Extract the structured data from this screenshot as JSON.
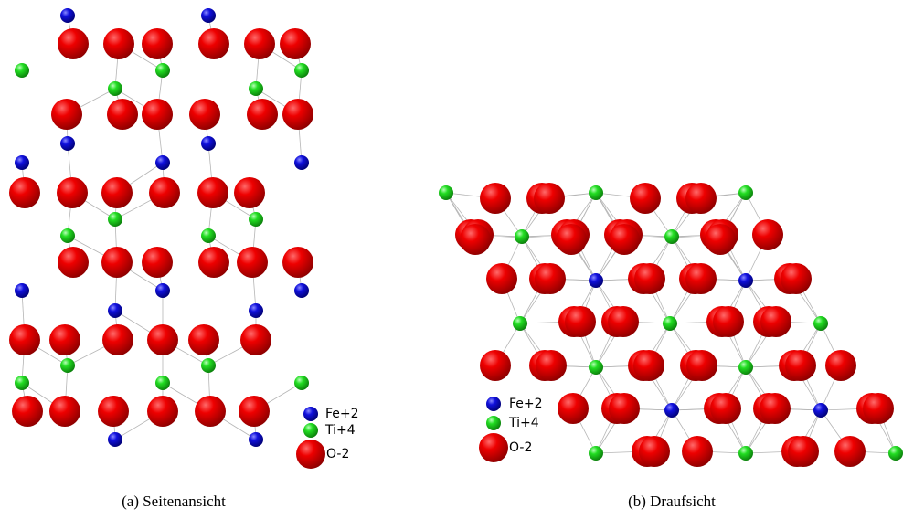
{
  "panels": [
    {
      "caption": "(a) Seitenansicht",
      "legend": [
        "Fe+2",
        "Ti+4",
        "O-2"
      ]
    },
    {
      "caption": "(b) Draufsicht",
      "legend": [
        "Fe+2",
        "Ti+4",
        "O-2"
      ]
    }
  ]
}
